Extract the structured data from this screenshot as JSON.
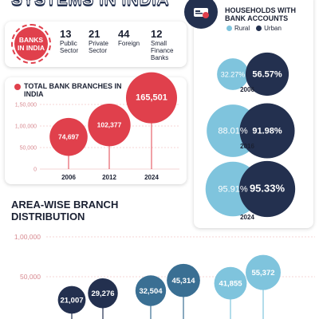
{
  "header": {
    "title": "SYSTEMS IN INDIA"
  },
  "stats": {
    "badge_label": "BANKS IN INDIA",
    "items": [
      {
        "value": "13",
        "label": "Public\nSector"
      },
      {
        "value": "21",
        "label": "Private\nSector"
      },
      {
        "value": "44",
        "label": "Foreign"
      },
      {
        "value": "12",
        "label": "Small\nFinance\nBanks"
      }
    ]
  },
  "households": {
    "title": "HOUSEHOLDS WITH BANK ACCOUNTS",
    "legend": [
      {
        "label": "Rural",
        "color": "#7fc4dd"
      },
      {
        "label": "Urban",
        "color": "#23304f"
      }
    ]
  },
  "colors": {
    "red": "#e0404c",
    "navy": "#23304f",
    "steel": "#3a6f93",
    "light_blue": "#7fc4dd",
    "axis_pink": "#f2c6c9"
  },
  "chart_data": [
    {
      "type": "bubble",
      "title": "TOTAL BANK BRANCHES IN INDIA",
      "categories": [
        "2006",
        "2012",
        "2024"
      ],
      "values": [
        74697,
        102377,
        165501
      ],
      "value_labels": [
        "74,697",
        "102,377",
        "165,501"
      ],
      "yticks": [
        "1,50,000",
        "1,00,000",
        "50,000",
        "0"
      ],
      "ytick_values": [
        150000,
        100000,
        50000,
        0
      ],
      "ylim": [
        0,
        150000
      ]
    },
    {
      "type": "bubble",
      "title": "HOUSEHOLDS WITH BANK ACCOUNTS",
      "categories": [
        "2006",
        "2016",
        "2024"
      ],
      "series": [
        {
          "name": "Rural",
          "values": [
            32.27,
            88.01,
            95.91
          ],
          "labels": [
            "32.27%",
            "88.01%",
            "95.91%"
          ]
        },
        {
          "name": "Urban",
          "values": [
            56.57,
            91.98,
            95.33
          ],
          "labels": [
            "56.57%",
            "91.98%",
            "95.33%"
          ]
        }
      ]
    },
    {
      "type": "bubble",
      "title": "AREA-WISE BRANCH DISTRIBUTION",
      "values": [
        21007,
        29276,
        32504,
        45314,
        41855,
        55372
      ],
      "value_labels": [
        "21,007",
        "29,276",
        "32,504",
        "45,314",
        "41,855",
        "55,372"
      ],
      "yticks": [
        "1,00,000",
        "50,000"
      ],
      "ytick_values": [
        100000,
        50000
      ],
      "ylim": [
        0,
        100000
      ]
    }
  ]
}
